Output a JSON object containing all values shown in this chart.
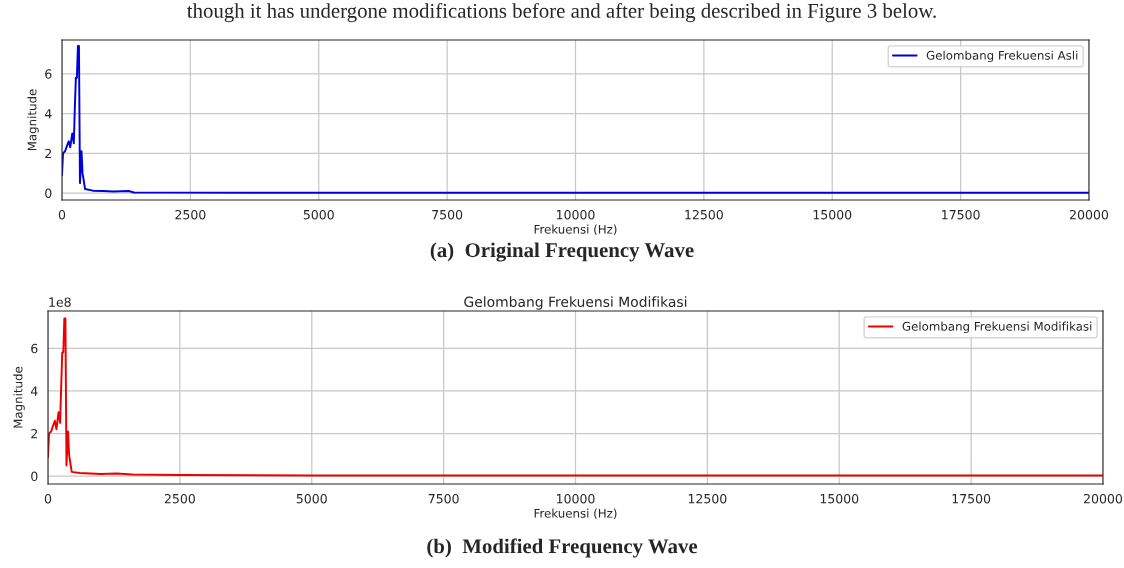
{
  "chart_data": [
    {
      "type": "line",
      "xlabel": "Frekuensi (Hz)",
      "ylabel": "Magnitude",
      "annotations": [
        "though it has undergone modifications before and after being described in Figure 3 below.",
        "(a)  Original Frequency Wave"
      ],
      "x": [
        0,
        20,
        60,
        100,
        130,
        160,
        200,
        230,
        250,
        270,
        290,
        310,
        330,
        350,
        380,
        400,
        450,
        600,
        800,
        1000,
        1300,
        1400,
        2000,
        5000,
        10000,
        15000,
        20000
      ],
      "series": [
        {
          "name": "Gelombang Frekuensi Asli",
          "color": "#0000dd",
          "values": [
            0.9,
            2.0,
            2.1,
            2.4,
            2.6,
            2.3,
            3.0,
            2.5,
            4.3,
            5.8,
            5.8,
            7.4,
            7.4,
            0.5,
            2.1,
            1.0,
            0.2,
            0.12,
            0.1,
            0.08,
            0.1,
            0.03,
            0.02,
            0.01,
            0.01,
            0.01,
            0.01
          ]
        }
      ],
      "xlim": [
        0,
        20000
      ],
      "xticks": [
        0,
        2500,
        5000,
        7500,
        10000,
        12500,
        15000,
        17500,
        20000
      ],
      "ylim": [
        -0.35,
        7.7
      ],
      "yticks": [
        0,
        2,
        4,
        6
      ],
      "grid": true,
      "legend": "top right"
    },
    {
      "type": "line",
      "title": "Gelombang Frekuensi Modifikasi",
      "xlabel": "Frekuensi (Hz)",
      "ylabel": "Magnitude",
      "annotations": [
        "1e8",
        "(b)  Modified Frequency Wave"
      ],
      "x": [
        0,
        20,
        60,
        100,
        130,
        160,
        200,
        230,
        250,
        270,
        290,
        310,
        330,
        350,
        380,
        400,
        450,
        600,
        800,
        1000,
        1300,
        1600,
        2000,
        2500,
        5000,
        10000,
        15000,
        20000
      ],
      "series": [
        {
          "name": "Gelombang Frekuensi Modifikasi",
          "color": "#ee0000",
          "values": [
            0.9,
            2.0,
            2.1,
            2.4,
            2.6,
            2.2,
            3.0,
            2.5,
            4.2,
            5.8,
            5.8,
            7.4,
            7.4,
            0.5,
            2.1,
            1.0,
            0.2,
            0.15,
            0.12,
            0.1,
            0.12,
            0.08,
            0.06,
            0.05,
            0.03,
            0.03,
            0.03,
            0.03
          ]
        }
      ],
      "xlim": [
        0,
        20000
      ],
      "xticks": [
        0,
        2500,
        5000,
        7500,
        10000,
        12500,
        15000,
        17500,
        20000
      ],
      "ylim": [
        -0.37,
        7.75
      ],
      "yticks": [
        0,
        2,
        4,
        6
      ],
      "grid": true,
      "legend": "top right"
    }
  ]
}
